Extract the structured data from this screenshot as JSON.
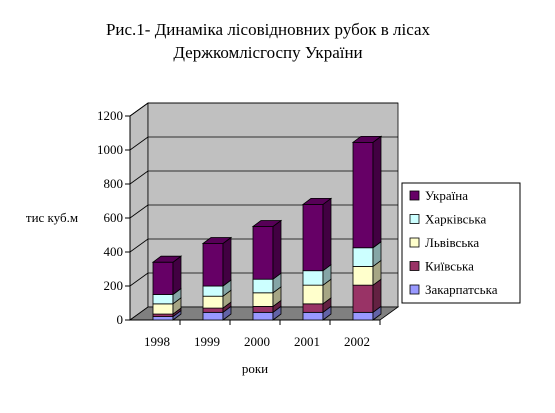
{
  "chart_data": {
    "type": "bar",
    "stacked": true,
    "three_d": true,
    "title_lines": [
      "Рис.1- Динаміка лісовідновних рубок в лісах",
      "Держкомлісгоспу України"
    ],
    "xlabel": "роки",
    "ylabel": "тис куб.м",
    "categories": [
      "1998",
      "1999",
      "2000",
      "2001",
      "2002"
    ],
    "ylim": [
      0,
      1200
    ],
    "yticks": [
      0,
      200,
      400,
      600,
      800,
      1000,
      1200
    ],
    "y_tick_labels": [
      "0",
      "200",
      "400",
      "600",
      "800",
      "1000",
      "1200"
    ],
    "grid": true,
    "legend_position": "right",
    "series": [
      {
        "name": "Закарпатська",
        "color": "#9999ff",
        "values": [
          20,
          45,
          45,
          45,
          45
        ]
      },
      {
        "name": "Київська",
        "color": "#993366",
        "values": [
          15,
          25,
          35,
          50,
          160
        ]
      },
      {
        "name": "Львівська",
        "color": "#ffffcc",
        "values": [
          60,
          70,
          80,
          110,
          110
        ]
      },
      {
        "name": "Харківська",
        "color": "#ccffff",
        "values": [
          55,
          60,
          80,
          85,
          110
        ]
      },
      {
        "name": "Україна",
        "color": "#660066",
        "values": [
          190,
          250,
          310,
          390,
          620
        ]
      }
    ],
    "legend_order": [
      4,
      3,
      2,
      1,
      0
    ]
  }
}
